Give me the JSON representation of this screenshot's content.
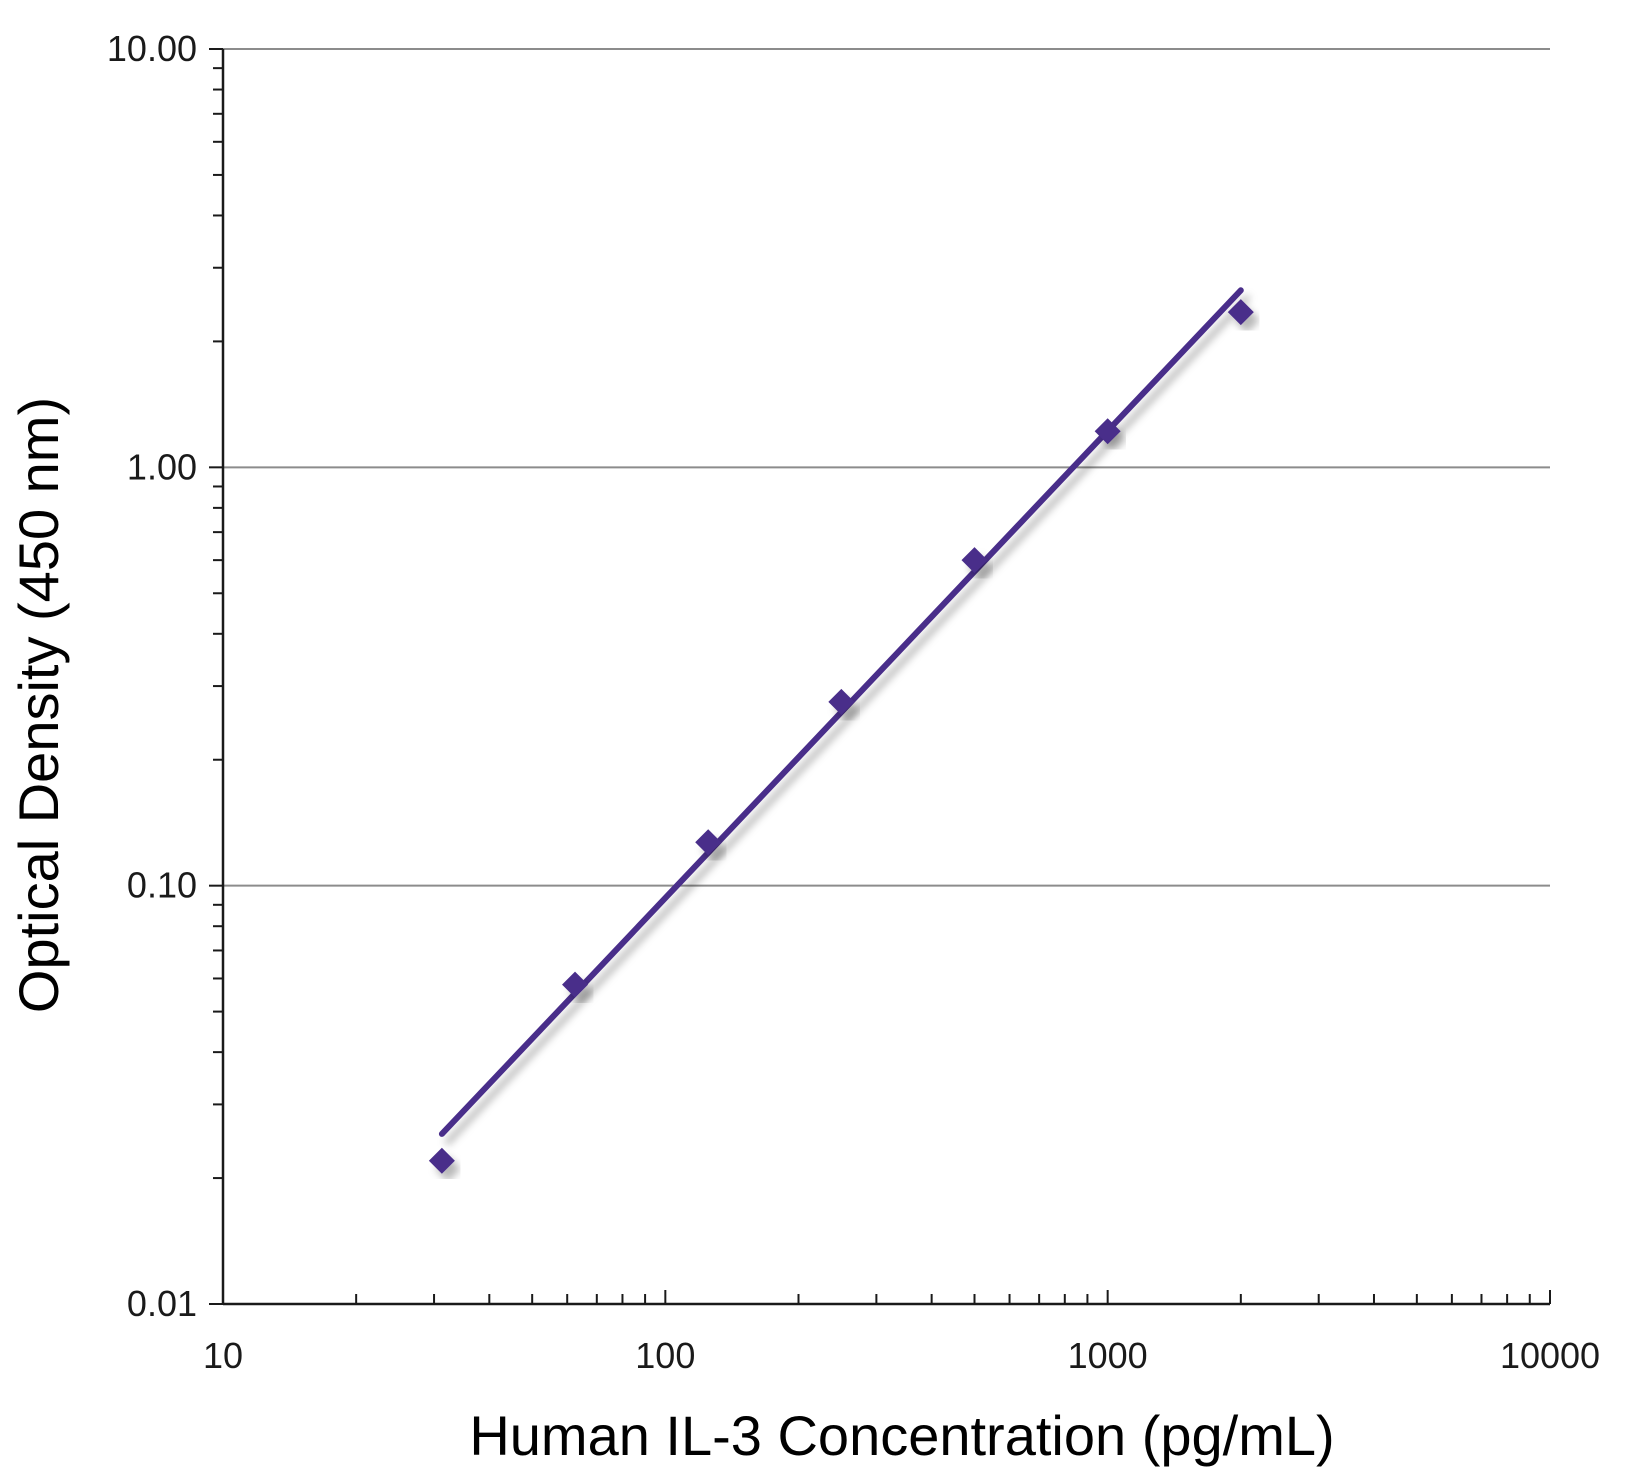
{
  "chart_data": {
    "type": "scatter",
    "xlabel": "Human IL-3 Concentration (pg/mL)",
    "ylabel": "Optical Density (450 nm)",
    "x_scale": "log",
    "y_scale": "log",
    "xlim": [
      10,
      10000
    ],
    "ylim": [
      0.01,
      10
    ],
    "x_ticks": [
      "10",
      "100",
      "1000",
      "10000"
    ],
    "y_ticks": [
      "0.01",
      "0.10",
      "1.00",
      "10.00"
    ],
    "grid": "horizontal major lines",
    "legend": "none",
    "series": [
      {
        "x": [
          31.25,
          62.5,
          125,
          250,
          500,
          1000,
          2000
        ],
        "y": [
          0.022,
          0.058,
          0.127,
          0.275,
          0.6,
          1.22,
          2.35
        ]
      }
    ],
    "fit_line": {
      "x": [
        31.25,
        2000
      ],
      "y": [
        0.0255,
        2.65
      ]
    },
    "colors": {
      "series": "#4a2d8a",
      "grid": "#8c8c8c",
      "axis": "#1a1a1a"
    }
  }
}
